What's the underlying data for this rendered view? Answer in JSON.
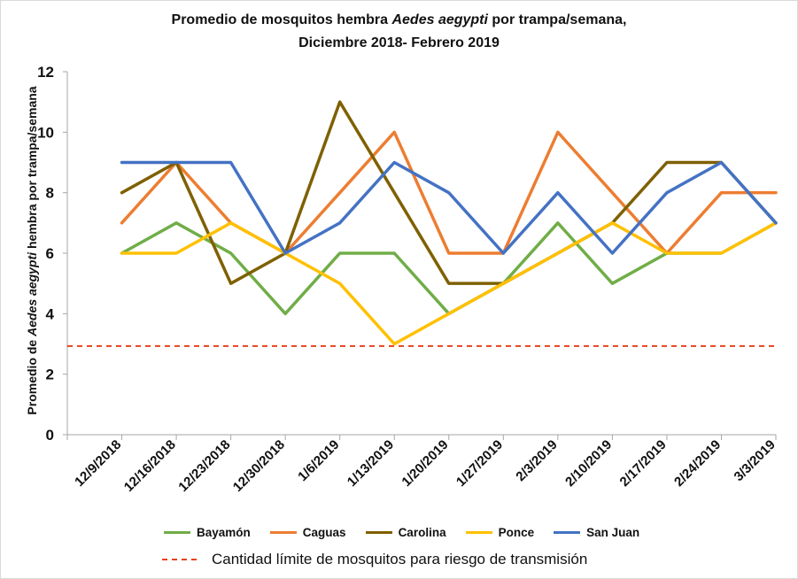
{
  "chart_data": {
    "type": "line",
    "title_prefix": "Promedio de mosquitos  hembra ",
    "title_italic": "Aedes aegypti",
    "title_suffix": " por trampa/semana,",
    "subtitle": "Diciembre 2018- Febrero 2019",
    "ylabel_prefix": "Promedio de ",
    "ylabel_italic": "Aedes aegypti",
    "ylabel_suffix": " hembra por trampa/semana",
    "xlabel": "",
    "ylim": [
      0,
      12
    ],
    "yticks": [
      "0",
      "2",
      "4",
      "6",
      "8",
      "10",
      "12"
    ],
    "grid": false,
    "legend_position": "bottom",
    "categories": [
      "12/9/2018",
      "12/16/2018",
      "12/23/2018",
      "12/30/2018",
      "1/6/2019",
      "1/13/2019",
      "1/20/2019",
      "1/27/2019",
      "2/3/2019",
      "2/10/2019",
      "2/17/2019",
      "2/24/2019",
      "3/3/2019"
    ],
    "series": [
      {
        "name": "Bayamón",
        "color": "#70ad47",
        "values": [
          6,
          7,
          6,
          4,
          6,
          6,
          4,
          5,
          7,
          5,
          6,
          6,
          7
        ]
      },
      {
        "name": "Caguas",
        "color": "#ed7d31",
        "values": [
          7,
          9,
          7,
          6,
          8,
          10,
          6,
          6,
          10,
          8,
          6,
          8,
          8
        ]
      },
      {
        "name": "Carolina",
        "color": "#7f6000",
        "values": [
          8,
          9,
          5,
          6,
          11,
          8,
          5,
          5,
          6,
          7,
          9,
          9,
          7
        ]
      },
      {
        "name": "Ponce",
        "color": "#ffc000",
        "values": [
          6,
          6,
          7,
          6,
          5,
          3,
          4,
          5,
          6,
          7,
          6,
          6,
          7
        ]
      },
      {
        "name": "San Juan",
        "color": "#4472c4",
        "values": [
          9,
          9,
          9,
          6,
          7,
          9,
          8,
          6,
          8,
          6,
          8,
          9,
          7
        ]
      }
    ],
    "threshold": {
      "value": 2.93,
      "color": "#e8411c",
      "label": "Cantidad límite de mosquitos para riesgo de transmisión"
    }
  }
}
